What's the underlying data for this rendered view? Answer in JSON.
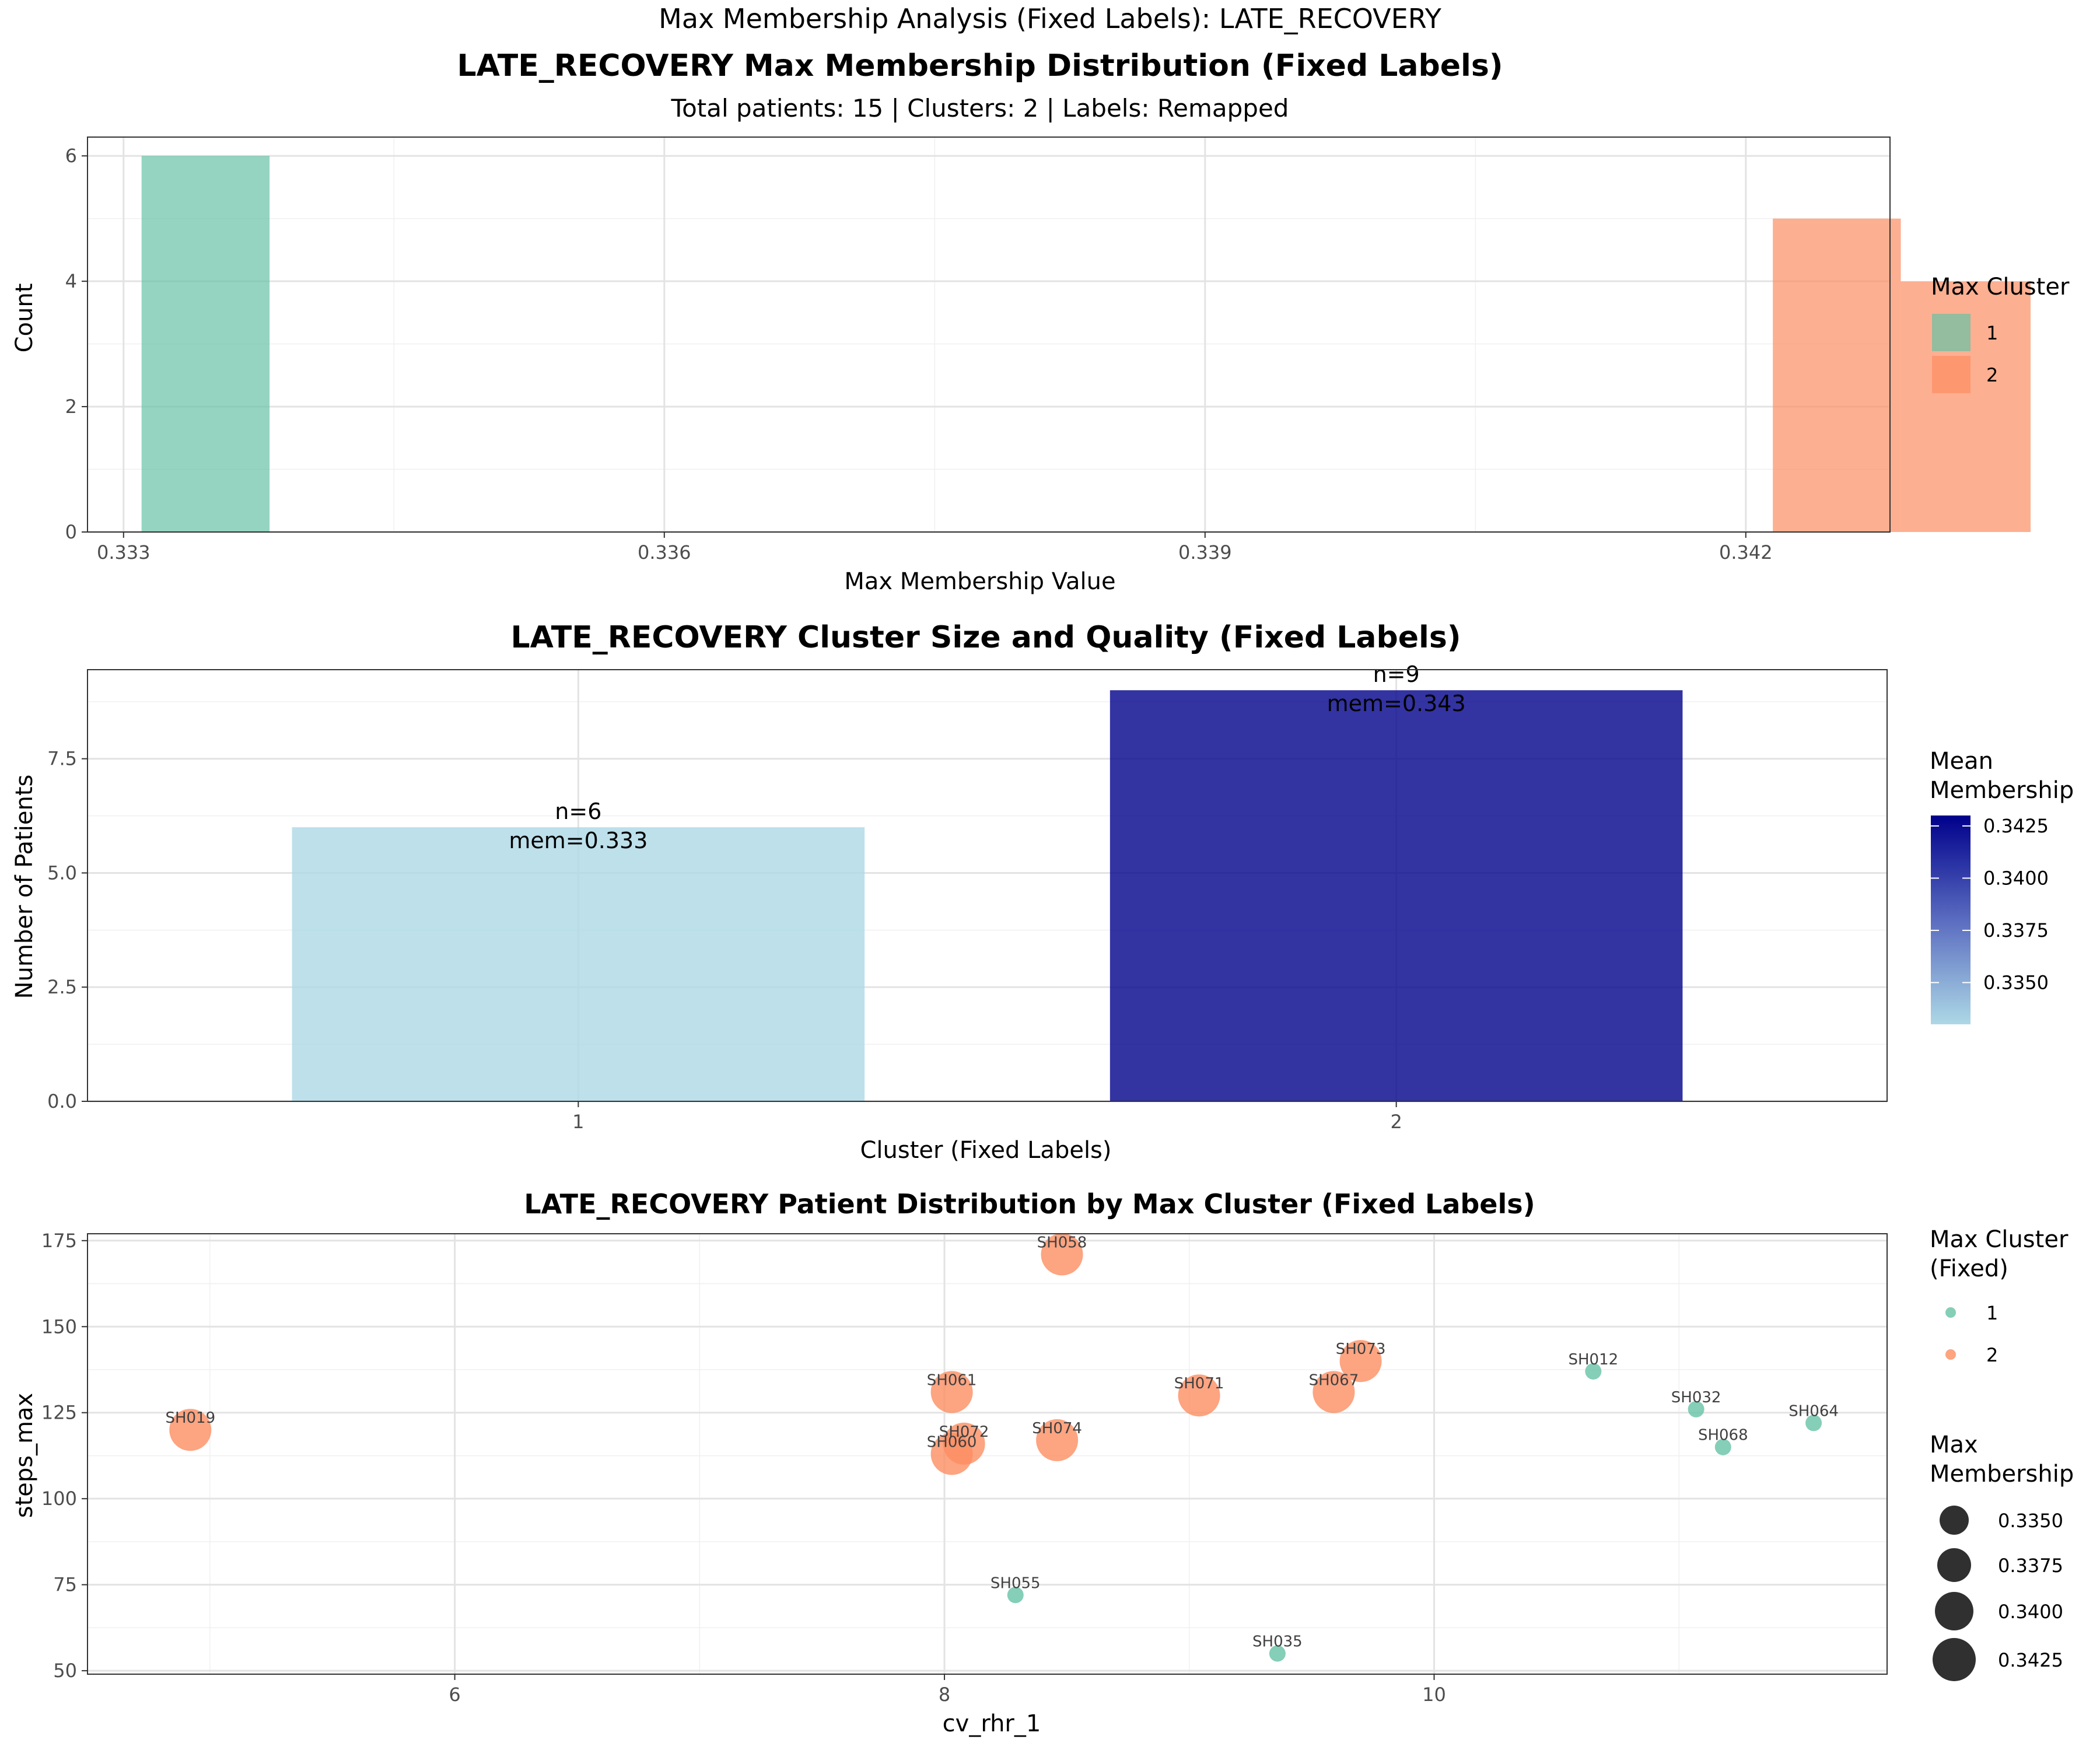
{
  "figure": {
    "suptitle": "Max Membership Analysis (Fixed Labels): LATE_RECOVERY"
  },
  "panels": {
    "hist": {
      "title": "LATE_RECOVERY Max Membership Distribution (Fixed Labels)",
      "subtitle": "Total patients: 15 | Clusters: 2 | Labels: Remapped",
      "legend_title": "Max Cluster",
      "legend": [
        {
          "label": "1",
          "color": "#66C2A5"
        },
        {
          "label": "2",
          "color": "#FC8D62"
        }
      ]
    },
    "bar": {
      "title": "LATE_RECOVERY Cluster Size and Quality (Fixed Labels)",
      "legend_title_1": "Mean",
      "legend_title_2": "Membership",
      "legend_ticks": [
        "0.3350",
        "0.3375",
        "0.3400",
        "0.3425"
      ],
      "color_low": "#ADD8E6",
      "color_high": "#00008B"
    },
    "scatter": {
      "title": "LATE_RECOVERY Patient Distribution by Max Cluster (Fixed Labels)",
      "legend_color_title_1": "Max Cluster",
      "legend_color_title_2": "(Fixed)",
      "legend_color": [
        {
          "label": "1",
          "color": "#66C2A5"
        },
        {
          "label": "2",
          "color": "#FC8D62"
        }
      ],
      "legend_size_title_1": "Max",
      "legend_size_title_2": "Membership",
      "legend_size": [
        "0.3350",
        "0.3375",
        "0.3400",
        "0.3425"
      ]
    }
  },
  "chart_data": [
    {
      "type": "bar",
      "subtype": "histogram",
      "title": "LATE_RECOVERY Max Membership Distribution (Fixed Labels)",
      "xlabel": "Max Membership Value",
      "ylabel": "Count",
      "xlim": [
        0.3328,
        0.3428
      ],
      "ylim": [
        0,
        6.3
      ],
      "x_ticks": [
        0.333,
        0.336,
        0.339,
        0.342
      ],
      "x_tick_labels": [
        "0.333",
        "0.336",
        "0.339",
        "0.342"
      ],
      "y_ticks": [
        0,
        2,
        4,
        6
      ],
      "grid": true,
      "legend_position": "right",
      "bins": [
        {
          "x0": 0.3331,
          "x1": 0.33381,
          "count": 6,
          "cluster": "1"
        },
        {
          "x0": 0.34215,
          "x1": 0.34286,
          "count": 5,
          "cluster": "2"
        },
        {
          "x0": 0.34286,
          "x1": 0.34358,
          "count": 4,
          "cluster": "2"
        }
      ]
    },
    {
      "type": "bar",
      "title": "LATE_RECOVERY Cluster Size and Quality (Fixed Labels)",
      "xlabel": "Cluster (Fixed Labels)",
      "ylabel": "Number of Patients",
      "categories": [
        "1",
        "2"
      ],
      "values": [
        6,
        9
      ],
      "mean_membership": [
        0.333,
        0.343
      ],
      "bar_labels": [
        {
          "n": "n=6",
          "mem": "mem=0.333"
        },
        {
          "n": "n=9",
          "mem": "mem=0.343"
        }
      ],
      "ylim": [
        0,
        9.45
      ],
      "y_ticks": [
        0,
        2.5,
        5,
        7.5
      ],
      "y_tick_labels": [
        "0.0",
        "2.5",
        "5.0",
        "7.5"
      ],
      "color_scale": [
        0.333,
        0.343
      ],
      "grid": true,
      "legend_position": "right"
    },
    {
      "type": "scatter",
      "title": "LATE_RECOVERY Patient Distribution by Max Cluster (Fixed Labels)",
      "xlabel": "cv_rhr_1",
      "ylabel": "steps_max",
      "xlim": [
        4.5,
        11.85
      ],
      "ylim": [
        49,
        177
      ],
      "x_ticks": [
        6,
        8,
        10
      ],
      "y_ticks": [
        50,
        75,
        100,
        125,
        150,
        175
      ],
      "grid": true,
      "legend_position": "right",
      "points": [
        {
          "id": "SH058",
          "x": 8.48,
          "y": 171,
          "cluster": "2",
          "membership": 0.343
        },
        {
          "id": "SH073",
          "x": 9.7,
          "y": 140,
          "cluster": "2",
          "membership": 0.343
        },
        {
          "id": "SH012",
          "x": 10.65,
          "y": 137,
          "cluster": "1",
          "membership": 0.3333
        },
        {
          "id": "SH061",
          "x": 8.03,
          "y": 131,
          "cluster": "2",
          "membership": 0.343
        },
        {
          "id": "SH071",
          "x": 9.04,
          "y": 130,
          "cluster": "2",
          "membership": 0.343
        },
        {
          "id": "SH067",
          "x": 9.59,
          "y": 131,
          "cluster": "2",
          "membership": 0.343
        },
        {
          "id": "SH032",
          "x": 11.07,
          "y": 126,
          "cluster": "1",
          "membership": 0.3333
        },
        {
          "id": "SH064",
          "x": 11.55,
          "y": 122,
          "cluster": "1",
          "membership": 0.3333
        },
        {
          "id": "SH019",
          "x": 4.92,
          "y": 120,
          "cluster": "2",
          "membership": 0.343
        },
        {
          "id": "SH074",
          "x": 8.46,
          "y": 117,
          "cluster": "2",
          "membership": 0.343
        },
        {
          "id": "SH072",
          "x": 8.08,
          "y": 116,
          "cluster": "2",
          "membership": 0.343
        },
        {
          "id": "SH068",
          "x": 11.18,
          "y": 115,
          "cluster": "1",
          "membership": 0.3333
        },
        {
          "id": "SH060",
          "x": 8.03,
          "y": 113,
          "cluster": "2",
          "membership": 0.343
        },
        {
          "id": "SH055",
          "x": 8.29,
          "y": 72,
          "cluster": "1",
          "membership": 0.3333
        },
        {
          "id": "SH035",
          "x": 9.36,
          "y": 55,
          "cluster": "1",
          "membership": 0.3333
        }
      ]
    }
  ]
}
